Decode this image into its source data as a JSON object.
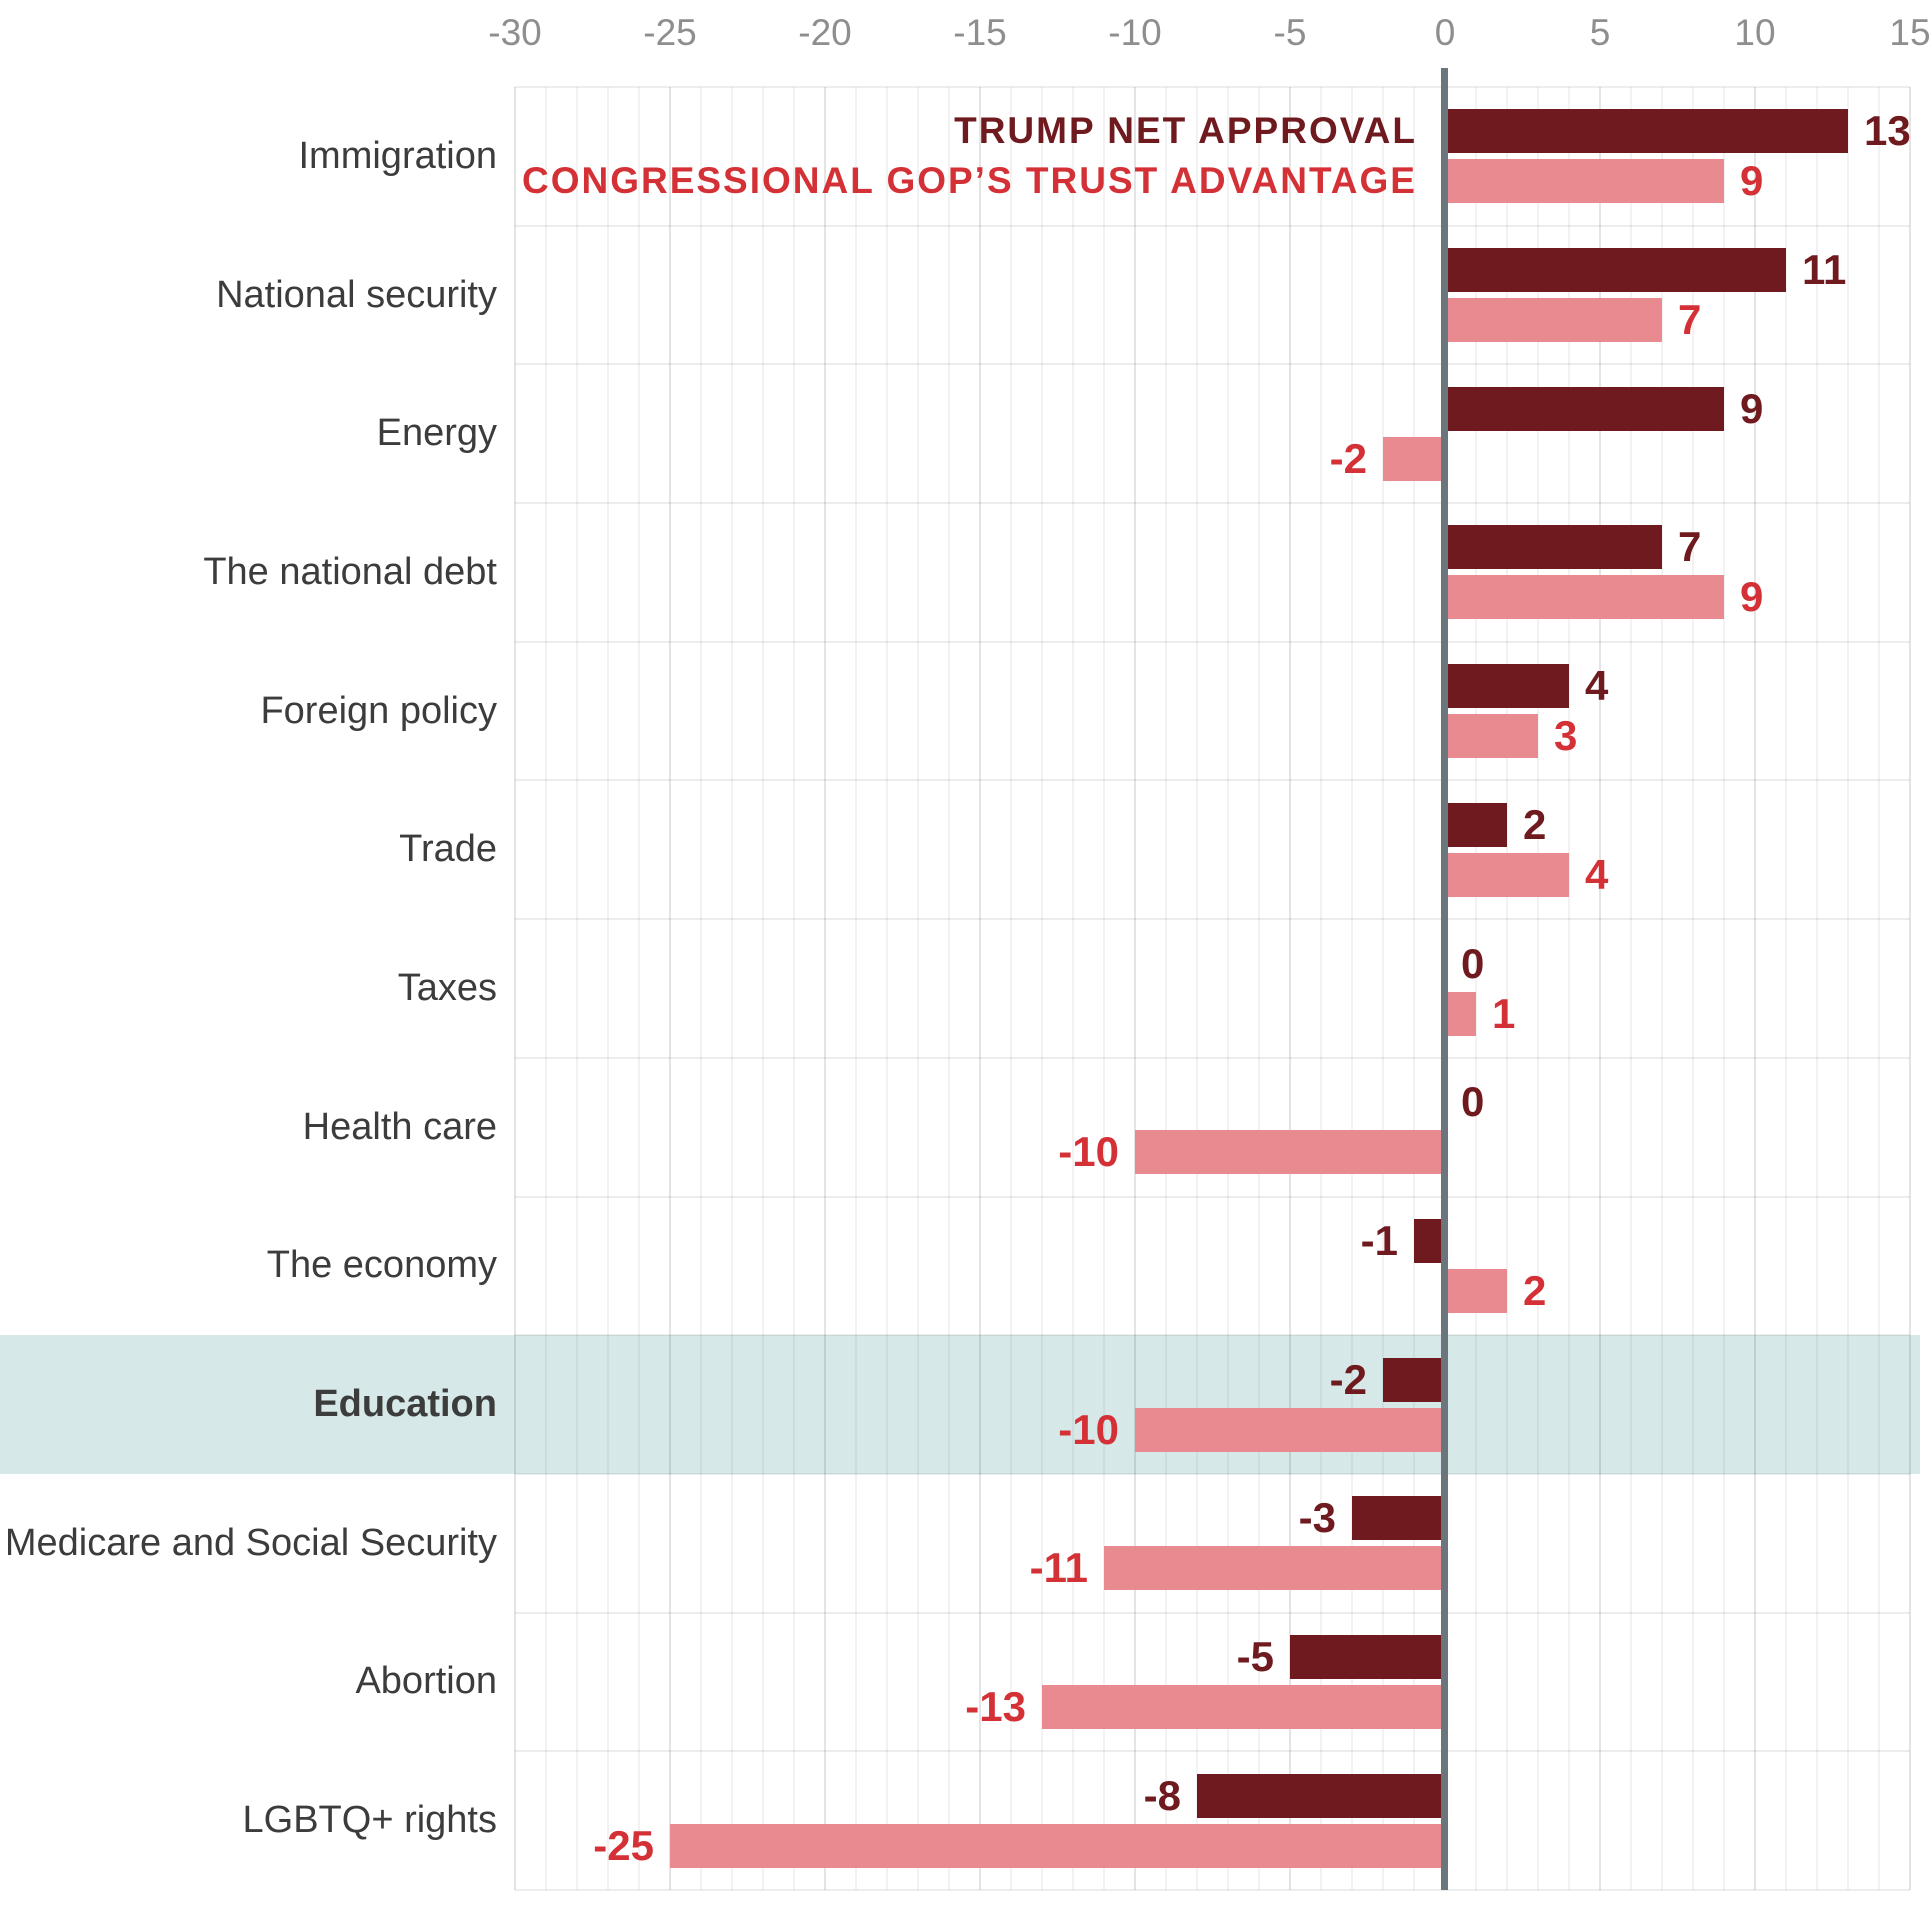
{
  "chart_data": {
    "type": "bar",
    "orientation": "horizontal",
    "categories": [
      "Immigration",
      "National security",
      "Energy",
      "The national debt",
      "Foreign policy",
      "Trade",
      "Taxes",
      "Health care",
      "The economy",
      "Education",
      "Medicare and Social Security",
      "Abortion",
      "LGBTQ+ rights"
    ],
    "series": [
      {
        "name": "TRUMP NET APPROVAL",
        "values": [
          13,
          11,
          9,
          7,
          4,
          2,
          0,
          0,
          -1,
          -2,
          -3,
          -5,
          -8
        ]
      },
      {
        "name": "CONGRESSIONAL GOP’S TRUST ADVANTAGE",
        "values": [
          9,
          7,
          -2,
          9,
          3,
          4,
          1,
          -10,
          2,
          -10,
          -11,
          -13,
          -25
        ]
      }
    ],
    "legend": [
      {
        "name": "TRUMP NET APPROVAL",
        "color": "#6e1a1e"
      },
      {
        "name": "CONGRESSIONAL GOP’S TRUST ADVANTAGE",
        "color": "#e88a8f"
      }
    ],
    "highlighted_category": "Education",
    "xlim": [
      -30,
      15
    ],
    "ticks": [
      -30,
      -25,
      -20,
      -15,
      -10,
      -5,
      0,
      5,
      10,
      15
    ],
    "grid": "minor every 1, major every 5",
    "legend_position": "top, right-aligned to zero line",
    "colors": {
      "trump_bar": "#6e1a1e",
      "gop_bar": "#e88a8f",
      "gop_value_text": "#d43137",
      "zero_line": "#6b767c",
      "tick_text": "#8e8e8e",
      "category_text": "#3c3c3c",
      "highlight_band": "#d6e9e8"
    }
  }
}
